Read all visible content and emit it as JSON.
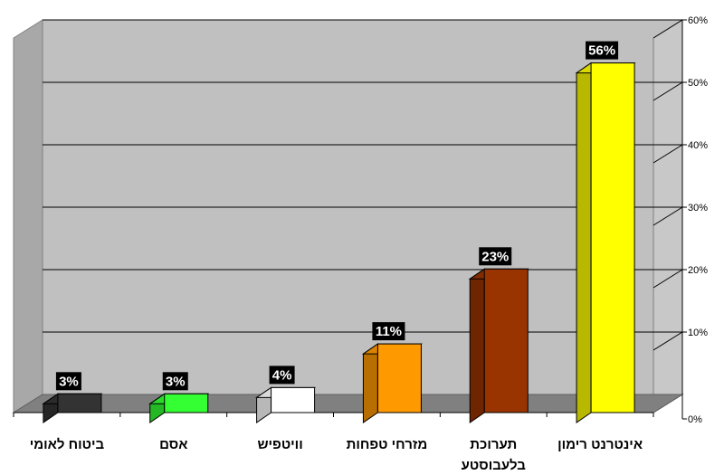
{
  "chart_data": {
    "type": "bar",
    "three_d": true,
    "categories": [
      [
        "ביטוח לאומי"
      ],
      [
        "אסם"
      ],
      [
        "וויטפיש"
      ],
      [
        "מזרחי טפחות"
      ],
      [
        "תערוכת",
        "בלעבוסטע"
      ],
      [
        "אינטרנט רימון"
      ]
    ],
    "values": [
      3,
      3,
      4,
      11,
      23,
      56
    ],
    "data_labels": [
      "3%",
      "3%",
      "4%",
      "11%",
      "23%",
      "56%"
    ],
    "colors": [
      "#333333",
      "#33ff33",
      "#ffffff",
      "#ff9900",
      "#993300",
      "#ffff00"
    ],
    "y_axis": {
      "position": "right",
      "ylim": [
        0,
        60
      ],
      "ticks": [
        0,
        10,
        20,
        30,
        40,
        50,
        60
      ],
      "tick_labels": [
        "0%",
        "10%",
        "20%",
        "30%",
        "40%",
        "50%",
        "60%"
      ]
    },
    "grid": true,
    "legend": "none",
    "title": "",
    "xlabel": "",
    "ylabel": ""
  }
}
